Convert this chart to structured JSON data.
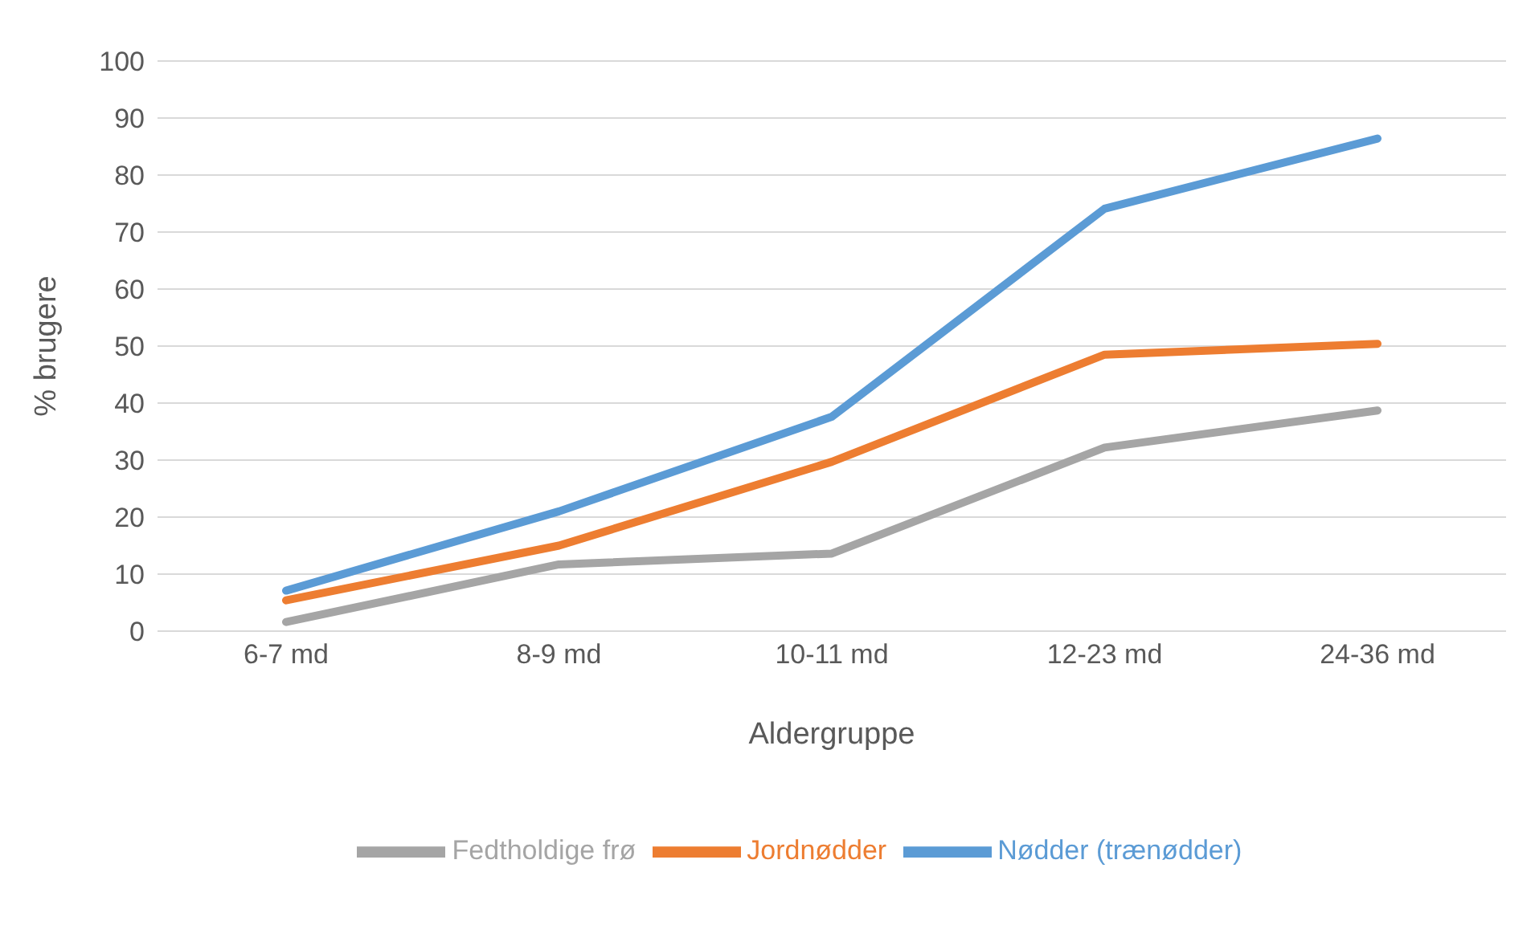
{
  "chart_data": {
    "type": "line",
    "xlabel": "Aldergruppe",
    "ylabel": "% brugere",
    "categories": [
      "6-7 md",
      "8-9 md",
      "10-11 md",
      "12-23 md",
      "24-36 md"
    ],
    "series": [
      {
        "name": "Nødder (trænødder)",
        "color": "#5b9bd5",
        "values": [
          7.1,
          21,
          37.6,
          74.1,
          86.4
        ]
      },
      {
        "name": "Jordnødder",
        "color": "#ed7d31",
        "values": [
          5.4,
          15,
          29.7,
          48.5,
          50.4
        ]
      },
      {
        "name": "Fedtholdige frø",
        "color": "#a5a5a5",
        "values": [
          1.6,
          11.7,
          13.6,
          32.2,
          38.7
        ]
      }
    ],
    "ylim": [
      0,
      100
    ],
    "yticks": [
      0,
      10,
      20,
      30,
      40,
      50,
      60,
      70,
      80,
      90,
      100
    ],
    "grid": "y",
    "legend": "bottom",
    "marker": "none",
    "line_style": "solid"
  }
}
